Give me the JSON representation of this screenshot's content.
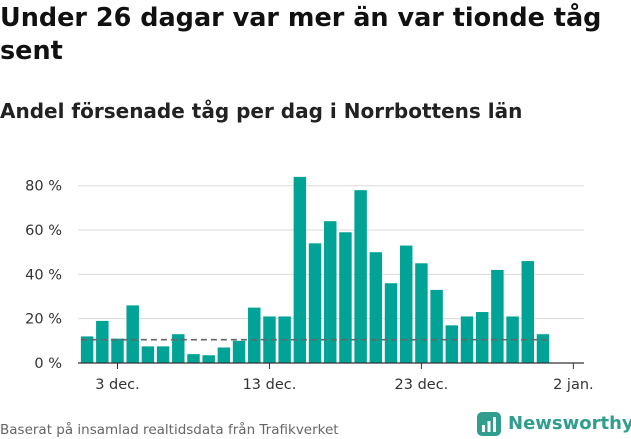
{
  "title": "Under 26 dagar var mer än var tionde tåg sent",
  "subtitle": "Andel försenade tåg per dag i Norrbottens län",
  "source": "Baserat på insamlad realtidsdata från Trafikverket",
  "brand": {
    "name": "Newsworthy",
    "icon": "newsworthy-logo-icon",
    "color": "#2f9e8f"
  },
  "chart_data": {
    "type": "bar",
    "x_start": "2020-12-01",
    "x_end": "2020-12-31",
    "x": [
      "2020-12-01",
      "2020-12-02",
      "2020-12-03",
      "2020-12-04",
      "2020-12-05",
      "2020-12-06",
      "2020-12-07",
      "2020-12-08",
      "2020-12-09",
      "2020-12-10",
      "2020-12-11",
      "2020-12-12",
      "2020-12-13",
      "2020-12-14",
      "2020-12-15",
      "2020-12-16",
      "2020-12-17",
      "2020-12-18",
      "2020-12-19",
      "2020-12-20",
      "2020-12-21",
      "2020-12-22",
      "2020-12-23",
      "2020-12-24",
      "2020-12-25",
      "2020-12-26",
      "2020-12-27",
      "2020-12-28",
      "2020-12-29",
      "2020-12-30",
      "2020-12-31"
    ],
    "values": [
      12,
      19,
      11,
      26,
      7.5,
      7.5,
      13,
      4,
      3.5,
      7,
      10,
      25,
      21,
      21,
      84,
      54,
      64,
      59,
      78,
      50,
      36,
      53,
      45,
      33,
      17,
      21,
      23,
      42,
      21,
      46,
      13
    ],
    "reference_line": {
      "value": 10.5,
      "style": "dashed",
      "color": "#666666"
    },
    "ylim": [
      0,
      88
    ],
    "yticks": [
      0,
      20,
      40,
      60,
      80
    ],
    "ytick_labels": [
      "0 %",
      "20 %",
      "40 %",
      "60 %",
      "80 %"
    ],
    "xticks": [
      "2020-12-03",
      "2020-12-13",
      "2020-12-23",
      "2021-01-02"
    ],
    "xtick_labels": [
      "3 dec.",
      "13 dec.",
      "23 dec.",
      "2 jan."
    ],
    "bar_color": "#00a396",
    "grid": "horizontal"
  }
}
